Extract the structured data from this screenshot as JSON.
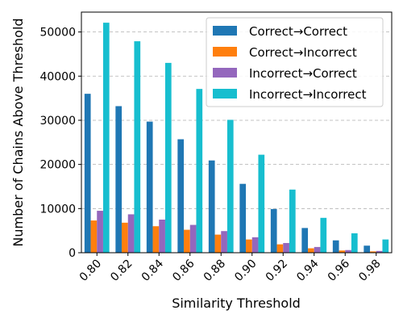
{
  "chart_data": {
    "type": "bar",
    "xlabel": "Similarity Threshold",
    "ylabel": "Number of Chains Above Threshold",
    "categories": [
      "0.80",
      "0.82",
      "0.84",
      "0.86",
      "0.88",
      "0.90",
      "0.92",
      "0.94",
      "0.96",
      "0.98"
    ],
    "ylim": [
      0,
      54500
    ],
    "yticks": [
      0,
      10000,
      20000,
      30000,
      40000,
      50000
    ],
    "grid": "y-dashed",
    "legend_position": "top-right",
    "series": [
      {
        "name": "Correct→Correct",
        "color": "#1f77b4",
        "values": [
          36000,
          33200,
          29700,
          25700,
          20900,
          15600,
          9900,
          5600,
          2800,
          1600
        ]
      },
      {
        "name": "Correct→Incorrect",
        "color": "#ff7f0e",
        "values": [
          7300,
          6800,
          6000,
          5200,
          4100,
          3000,
          1900,
          1000,
          500,
          300
        ]
      },
      {
        "name": "Incorrect→Correct",
        "color": "#9467bd",
        "values": [
          9500,
          8700,
          7500,
          6300,
          4900,
          3500,
          2200,
          1300,
          600,
          400
        ]
      },
      {
        "name": "Incorrect→Incorrect",
        "color": "#17becf",
        "values": [
          52100,
          47900,
          43000,
          37100,
          30100,
          22200,
          14300,
          7900,
          4400,
          3000
        ]
      }
    ]
  }
}
